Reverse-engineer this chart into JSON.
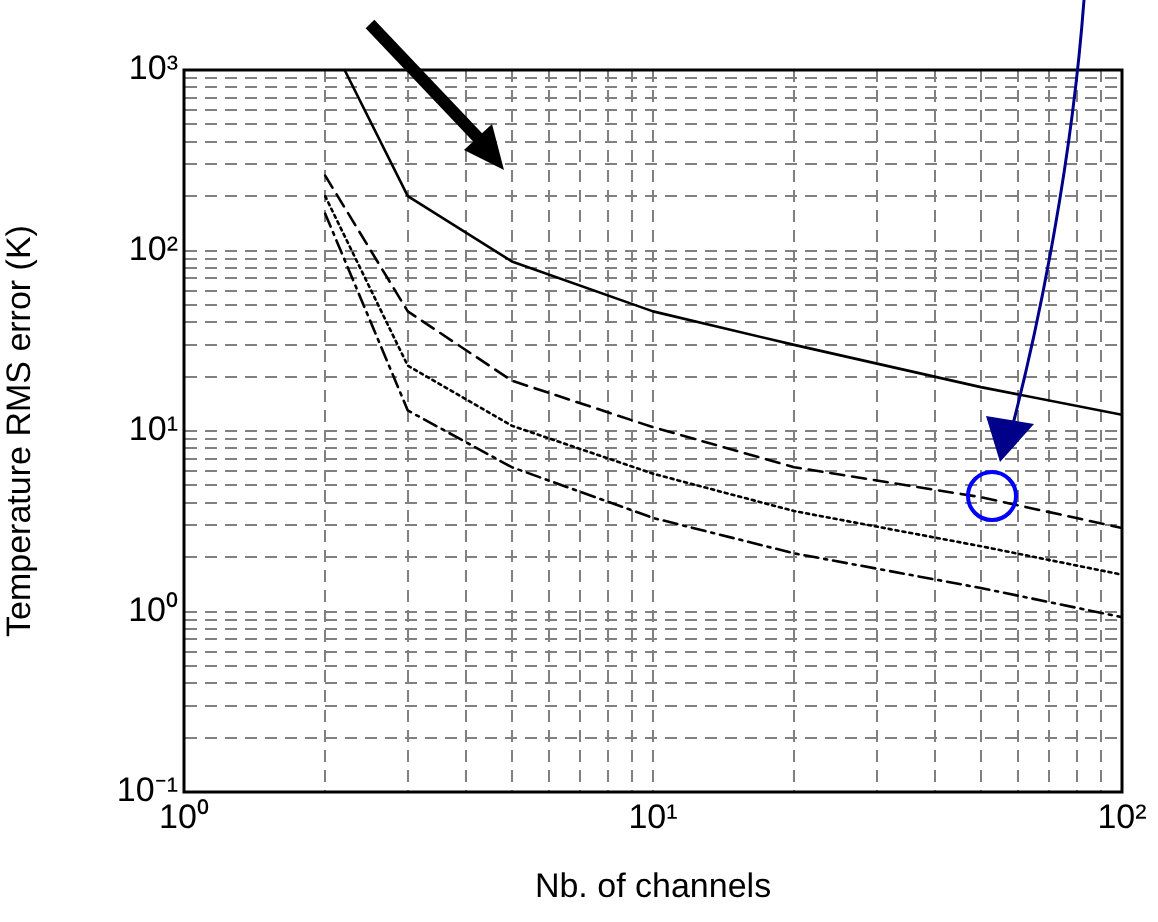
{
  "chart_data": {
    "type": "line",
    "xlabel": "Nb. of channels",
    "ylabel": "Temperature RMS error (K)",
    "x": [
      2,
      3,
      5,
      10,
      20,
      50,
      100
    ],
    "series": [
      {
        "color": "#000000",
        "line_style": "solid",
        "x": [
          2.2,
          3,
          5,
          10,
          20,
          50,
          100
        ],
        "values": [
          1000,
          200,
          87,
          46,
          30,
          17.5,
          12.3
        ]
      },
      {
        "color": "#000000",
        "line_style": "dashed",
        "values": [
          260,
          46,
          19,
          10.5,
          6.3,
          4.3,
          2.9
        ]
      },
      {
        "color": "#000000",
        "line_style": "dotted",
        "values": [
          200,
          23,
          10.7,
          5.8,
          3.6,
          2.3,
          1.6
        ]
      },
      {
        "color": "#000000",
        "line_style": "dashdot",
        "values": [
          160,
          13,
          6.3,
          3.3,
          2.1,
          1.35,
          0.93
        ]
      }
    ],
    "log": "xy",
    "xlim": [
      1,
      100
    ],
    "ylim": [
      0.1,
      1000
    ],
    "xticks": [
      {
        "value": 1,
        "label": "10⁰"
      },
      {
        "value": 2,
        "label": null
      },
      {
        "value": 3,
        "label": null
      },
      {
        "value": 4,
        "label": null
      },
      {
        "value": 5,
        "label": null
      },
      {
        "value": 6,
        "label": null
      },
      {
        "value": 7,
        "label": null
      },
      {
        "value": 8,
        "label": null
      },
      {
        "value": 9,
        "label": null
      },
      {
        "value": 10,
        "label": "10¹"
      },
      {
        "value": 20,
        "label": null
      },
      {
        "value": 30,
        "label": null
      },
      {
        "value": 40,
        "label": null
      },
      {
        "value": 50,
        "label": null
      },
      {
        "value": 60,
        "label": null
      },
      {
        "value": 70,
        "label": null
      },
      {
        "value": 80,
        "label": null
      },
      {
        "value": 90,
        "label": null
      },
      {
        "value": 100,
        "label": "10²"
      }
    ],
    "yticks": [
      {
        "value": 0.1,
        "label": "10⁻¹"
      },
      {
        "value": 0.2,
        "label": null
      },
      {
        "value": 0.3,
        "label": null
      },
      {
        "value": 0.4,
        "label": null
      },
      {
        "value": 0.5,
        "label": null
      },
      {
        "value": 0.6,
        "label": null
      },
      {
        "value": 0.7,
        "label": null
      },
      {
        "value": 0.8,
        "label": null
      },
      {
        "value": 0.9,
        "label": null
      },
      {
        "value": 1,
        "label": "10⁰"
      },
      {
        "value": 2,
        "label": null
      },
      {
        "value": 3,
        "label": null
      },
      {
        "value": 4,
        "label": null
      },
      {
        "value": 5,
        "label": null
      },
      {
        "value": 6,
        "label": null
      },
      {
        "value": 7,
        "label": null
      },
      {
        "value": 8,
        "label": null
      },
      {
        "value": 9,
        "label": null
      },
      {
        "value": 10,
        "label": "10¹"
      },
      {
        "value": 20,
        "label": null
      },
      {
        "value": 30,
        "label": null
      },
      {
        "value": 40,
        "label": null
      },
      {
        "value": 50,
        "label": null
      },
      {
        "value": 60,
        "label": null
      },
      {
        "value": 70,
        "label": null
      },
      {
        "value": 80,
        "label": null
      },
      {
        "value": 90,
        "label": null
      },
      {
        "value": 100,
        "label": "10²"
      },
      {
        "value": 200,
        "label": null
      },
      {
        "value": 300,
        "label": null
      },
      {
        "value": 400,
        "label": null
      },
      {
        "value": 500,
        "label": null
      },
      {
        "value": 600,
        "label": null
      },
      {
        "value": 700,
        "label": null
      },
      {
        "value": 800,
        "label": null
      },
      {
        "value": 900,
        "label": null
      },
      {
        "value": 1000,
        "label": "10³"
      }
    ],
    "grid": true,
    "legend": false,
    "marker": "none"
  }
}
